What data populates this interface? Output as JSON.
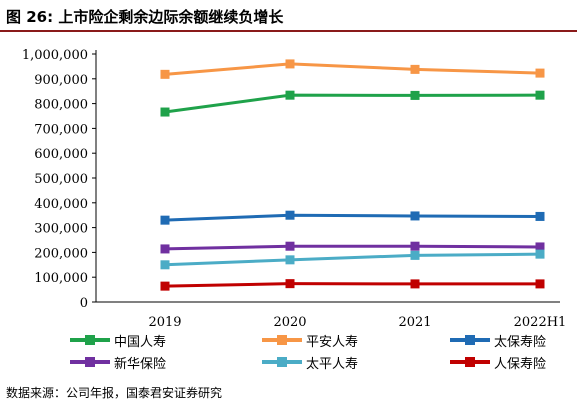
{
  "header": {
    "title": "图  26:  上市险企剩余边际余额继续负增长"
  },
  "footer": {
    "source": "数据来源：公司年报，国泰君安证券研究"
  },
  "chart_data": {
    "type": "line",
    "categories": [
      "2019",
      "2020",
      "2021",
      "2022H1"
    ],
    "ylim": [
      0,
      1000000
    ],
    "yticks": [
      "0",
      "100,000",
      "200,000",
      "300,000",
      "400,000",
      "500,000",
      "600,000",
      "700,000",
      "800,000",
      "900,000",
      "1,000,000"
    ],
    "grid": false,
    "legend_position": "bottom",
    "series": [
      {
        "name": "中国人寿",
        "color": "#1fa24a",
        "values": [
          766000,
          834000,
          833000,
          834000
        ]
      },
      {
        "name": "平安人寿",
        "color": "#f79646",
        "values": [
          918000,
          960000,
          938000,
          923000
        ]
      },
      {
        "name": "太保寿险",
        "color": "#1f6bb4",
        "values": [
          330000,
          350000,
          347000,
          345000
        ]
      },
      {
        "name": "新华保险",
        "color": "#7030a0",
        "values": [
          214000,
          225000,
          225000,
          222000
        ]
      },
      {
        "name": "太平人寿",
        "color": "#4bacc6",
        "values": [
          150000,
          170000,
          188000,
          193000
        ]
      },
      {
        "name": "人保寿险",
        "color": "#c00000",
        "values": [
          64000,
          74000,
          73000,
          73000
        ]
      }
    ]
  }
}
